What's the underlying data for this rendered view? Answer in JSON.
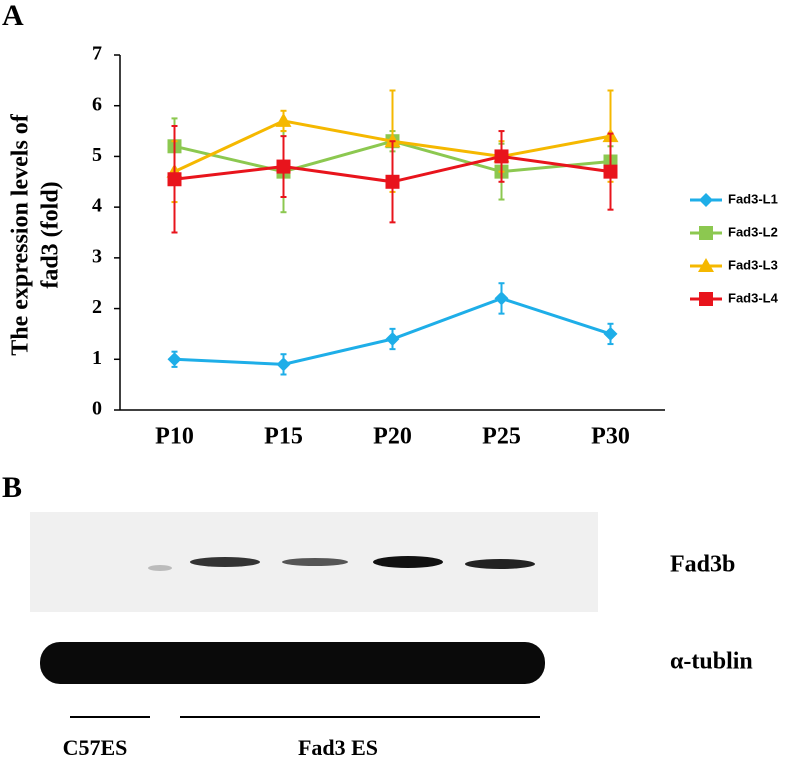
{
  "panels": {
    "a": "A",
    "b": "B"
  },
  "chart_data": {
    "type": "line",
    "ylabel": [
      "The expression levels of",
      "fad3 (fold)"
    ],
    "categories": [
      "P10",
      "P15",
      "P20",
      "P25",
      "P30"
    ],
    "ylim": [
      0,
      7
    ],
    "yticks": [
      0,
      1,
      2,
      3,
      4,
      5,
      6,
      7
    ],
    "series": [
      {
        "name": "Fad3-L1",
        "color": "#1eaee8",
        "marker": "diamond",
        "values": [
          1.0,
          0.9,
          1.4,
          2.2,
          1.5
        ],
        "errors": [
          0.15,
          0.2,
          0.2,
          0.3,
          0.2
        ]
      },
      {
        "name": "Fad3-L2",
        "color": "#8cc850",
        "marker": "square",
        "values": [
          5.2,
          4.7,
          5.3,
          4.7,
          4.9
        ],
        "errors": [
          0.55,
          0.8,
          0.2,
          0.55,
          0.3
        ]
      },
      {
        "name": "Fad3-L3",
        "color": "#f5b800",
        "marker": "triangle",
        "values": [
          4.7,
          5.7,
          5.3,
          5.0,
          5.4
        ],
        "errors": [
          0.6,
          0.2,
          1.0,
          0.3,
          0.9
        ]
      },
      {
        "name": "Fad3-L4",
        "color": "#e8141c",
        "marker": "square",
        "values": [
          4.55,
          4.8,
          4.5,
          5.0,
          4.7
        ],
        "errors": [
          1.05,
          0.6,
          0.8,
          0.5,
          0.75
        ]
      }
    ]
  },
  "blot": {
    "rows": [
      "Fad3b",
      "α-tublin"
    ],
    "groups": [
      "C57ES",
      "Fad3 ES"
    ]
  }
}
